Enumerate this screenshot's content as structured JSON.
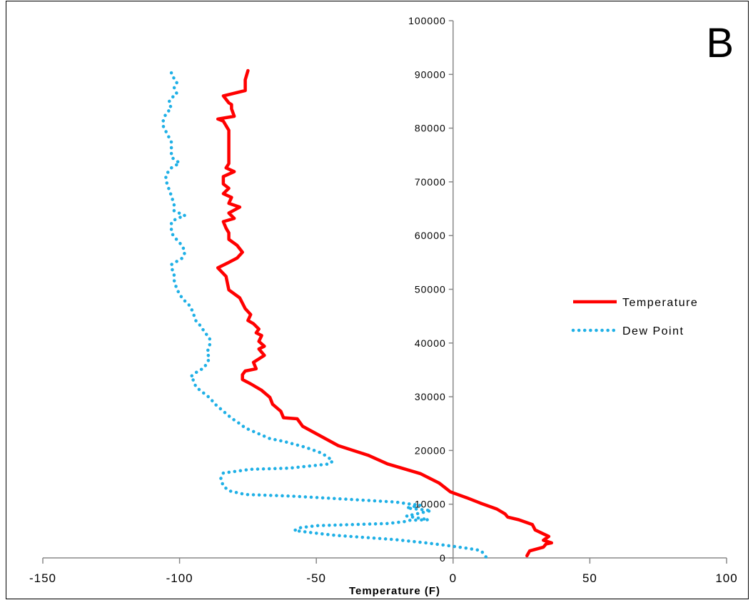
{
  "chart_data": {
    "type": "line",
    "panel_label": "B",
    "xlabel": "Temperature (F)",
    "ylabel": "",
    "xlim": [
      -150,
      100
    ],
    "ylim": [
      0,
      100000
    ],
    "x_ticks": [
      -150,
      -100,
      -50,
      0,
      50,
      100
    ],
    "y_ticks": [
      0,
      10000,
      20000,
      30000,
      40000,
      50000,
      60000,
      70000,
      80000,
      90000,
      100000
    ],
    "grid": false,
    "legend_position": "right",
    "series": [
      {
        "name": "Temperature",
        "color": "#ff0000",
        "style": "solid",
        "points": [
          [
            27,
            400
          ],
          [
            28,
            1300
          ],
          [
            33,
            2000
          ],
          [
            34,
            2600
          ],
          [
            36,
            2800
          ],
          [
            33,
            3300
          ],
          [
            35,
            4000
          ],
          [
            30,
            5200
          ],
          [
            29,
            6200
          ],
          [
            24,
            7100
          ],
          [
            20,
            7600
          ],
          [
            19,
            8200
          ],
          [
            16,
            9100
          ],
          [
            10,
            10200
          ],
          [
            5,
            11200
          ],
          [
            -1,
            12300
          ],
          [
            -5,
            13900
          ],
          [
            -12,
            15700
          ],
          [
            -24,
            17500
          ],
          [
            -31,
            19100
          ],
          [
            -42,
            20900
          ],
          [
            -55,
            24500
          ],
          [
            -56,
            25200
          ],
          [
            -57,
            25900
          ],
          [
            -62,
            26100
          ],
          [
            -63,
            27300
          ],
          [
            -66,
            28600
          ],
          [
            -67,
            29900
          ],
          [
            -70,
            31200
          ],
          [
            -74,
            32400
          ],
          [
            -77,
            33200
          ],
          [
            -77,
            34100
          ],
          [
            -76,
            34800
          ],
          [
            -72,
            35200
          ],
          [
            -73,
            36400
          ],
          [
            -69,
            37700
          ],
          [
            -71,
            38900
          ],
          [
            -69,
            39400
          ],
          [
            -71,
            40300
          ],
          [
            -70,
            41400
          ],
          [
            -72,
            41900
          ],
          [
            -71,
            42600
          ],
          [
            -73,
            43600
          ],
          [
            -75,
            44200
          ],
          [
            -74,
            45300
          ],
          [
            -76,
            46400
          ],
          [
            -78,
            48400
          ],
          [
            -82,
            49900
          ],
          [
            -83,
            52400
          ],
          [
            -86,
            54000
          ],
          [
            -82,
            55000
          ],
          [
            -79,
            55800
          ],
          [
            -77,
            56900
          ],
          [
            -79,
            58200
          ],
          [
            -82,
            59300
          ],
          [
            -82,
            60500
          ],
          [
            -83,
            61400
          ],
          [
            -84,
            62600
          ],
          [
            -80,
            63200
          ],
          [
            -82,
            64200
          ],
          [
            -78,
            65300
          ],
          [
            -82,
            66000
          ],
          [
            -81,
            67100
          ],
          [
            -84,
            67800
          ],
          [
            -82,
            68800
          ],
          [
            -84,
            69600
          ],
          [
            -84,
            71000
          ],
          [
            -80,
            71900
          ],
          [
            -83,
            72600
          ],
          [
            -82,
            73400
          ],
          [
            -82,
            75400
          ],
          [
            -82,
            77800
          ],
          [
            -82,
            79600
          ],
          [
            -84,
            81300
          ],
          [
            -86,
            81700
          ],
          [
            -80,
            82200
          ],
          [
            -81,
            83600
          ],
          [
            -81,
            84400
          ],
          [
            -82,
            84700
          ],
          [
            -84,
            86000
          ],
          [
            -76,
            87000
          ],
          [
            -76,
            89000
          ],
          [
            -75,
            90700
          ]
        ]
      },
      {
        "name": "Dew Point",
        "color": "#1fb0e6",
        "style": "dotted",
        "points": [
          [
            12,
            200
          ],
          [
            11,
            900
          ],
          [
            10,
            1400
          ],
          [
            5,
            1800
          ],
          [
            -2,
            2300
          ],
          [
            -10,
            2800
          ],
          [
            -21,
            3400
          ],
          [
            -43,
            4200
          ],
          [
            -50,
            4600
          ],
          [
            -58,
            5100
          ],
          [
            -56,
            5600
          ],
          [
            -50,
            6000
          ],
          [
            -24,
            6400
          ],
          [
            -17,
            6800
          ],
          [
            -16,
            7000
          ],
          [
            -9,
            7100
          ],
          [
            -17,
            7800
          ],
          [
            -8,
            8800
          ],
          [
            -17,
            9300
          ],
          [
            -12,
            9800
          ],
          [
            -17,
            10100
          ],
          [
            -21,
            10400
          ],
          [
            -45,
            11100
          ],
          [
            -59,
            11500
          ],
          [
            -76,
            11800
          ],
          [
            -82,
            12500
          ],
          [
            -84,
            13400
          ],
          [
            -85,
            14700
          ],
          [
            -84,
            15800
          ],
          [
            -74,
            16500
          ],
          [
            -60,
            16700
          ],
          [
            -45,
            17500
          ],
          [
            -44,
            18100
          ],
          [
            -48,
            19500
          ],
          [
            -54,
            20600
          ],
          [
            -62,
            21700
          ],
          [
            -67,
            22200
          ],
          [
            -71,
            23100
          ],
          [
            -76,
            24200
          ],
          [
            -78,
            25000
          ],
          [
            -81,
            26000
          ],
          [
            -84,
            27300
          ],
          [
            -87,
            28600
          ],
          [
            -89,
            29800
          ],
          [
            -94,
            31800
          ],
          [
            -95,
            33100
          ],
          [
            -96,
            33700
          ],
          [
            -94,
            34500
          ],
          [
            -91,
            35400
          ],
          [
            -90,
            36300
          ],
          [
            -89,
            37200
          ],
          [
            -90,
            38200
          ],
          [
            -89,
            39500
          ],
          [
            -89,
            40900
          ],
          [
            -91,
            42100
          ],
          [
            -92,
            43000
          ],
          [
            -94,
            44100
          ],
          [
            -95,
            45500
          ],
          [
            -96,
            46800
          ],
          [
            -99,
            48300
          ],
          [
            -101,
            50000
          ],
          [
            -102,
            51700
          ],
          [
            -102,
            53000
          ],
          [
            -103,
            54000
          ],
          [
            -103,
            54600
          ],
          [
            -99,
            55800
          ],
          [
            -98,
            56900
          ],
          [
            -99,
            58100
          ],
          [
            -101,
            59200
          ],
          [
            -103,
            60500
          ],
          [
            -103,
            61600
          ],
          [
            -103,
            62500
          ],
          [
            -101,
            63200
          ],
          [
            -98,
            63700
          ],
          [
            -102,
            64600
          ],
          [
            -102,
            65800
          ],
          [
            -103,
            67400
          ],
          [
            -104,
            68800
          ],
          [
            -105,
            70300
          ],
          [
            -105,
            71300
          ],
          [
            -103,
            72600
          ],
          [
            -100,
            73500
          ],
          [
            -103,
            74600
          ],
          [
            -103,
            76200
          ],
          [
            -103,
            77400
          ],
          [
            -104,
            78400
          ],
          [
            -105,
            79400
          ],
          [
            -106,
            80400
          ],
          [
            -106,
            81300
          ],
          [
            -105,
            82700
          ],
          [
            -103,
            83700
          ],
          [
            -104,
            84800
          ],
          [
            -103,
            85600
          ],
          [
            -101,
            86400
          ],
          [
            -102,
            87600
          ],
          [
            -101,
            88500
          ],
          [
            -103,
            90000
          ],
          [
            -103,
            90600
          ]
        ]
      }
    ]
  }
}
